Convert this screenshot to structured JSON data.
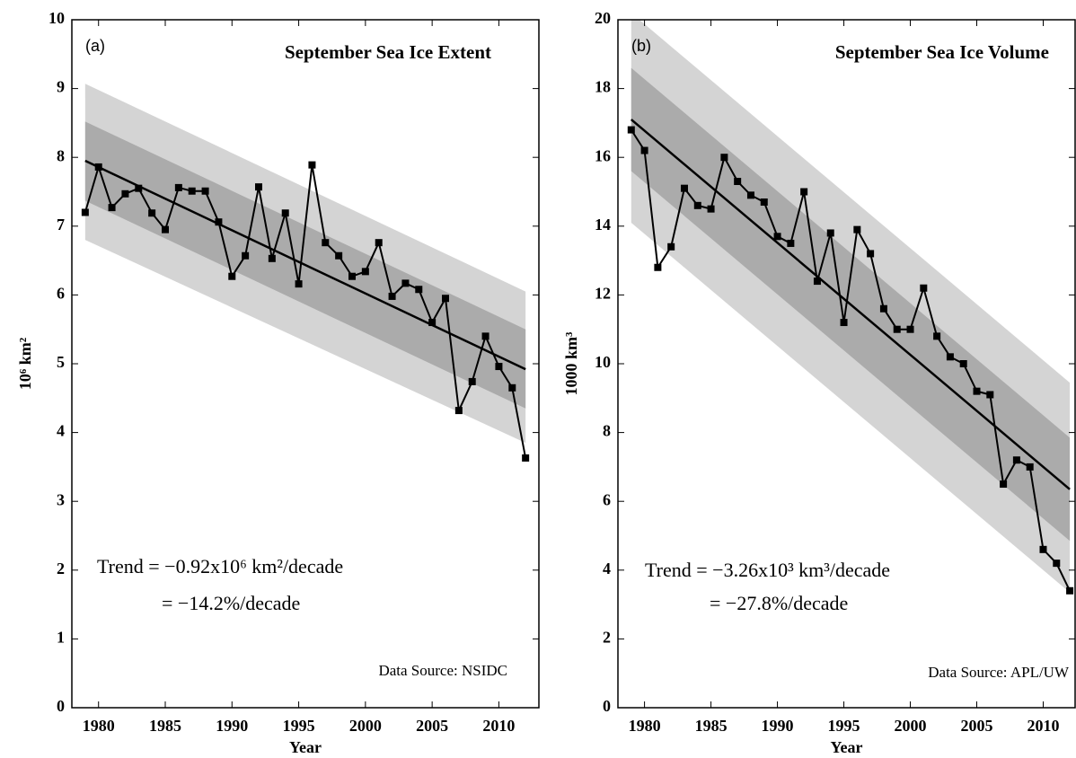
{
  "chart_data": [
    {
      "type": "line",
      "panel_label": "(a)",
      "title": "September Sea Ice Extent",
      "x_label": "Year",
      "y_label": "10⁶ km²",
      "x": [
        1979,
        1980,
        1981,
        1982,
        1983,
        1984,
        1985,
        1986,
        1987,
        1988,
        1989,
        1990,
        1991,
        1992,
        1993,
        1994,
        1995,
        1996,
        1997,
        1998,
        1999,
        2000,
        2001,
        2002,
        2003,
        2004,
        2005,
        2006,
        2007,
        2008,
        2009,
        2010,
        2011,
        2012
      ],
      "values": [
        7.2,
        7.86,
        7.27,
        7.47,
        7.55,
        7.19,
        6.95,
        7.56,
        7.51,
        7.51,
        7.06,
        6.27,
        6.57,
        7.57,
        6.53,
        7.19,
        6.16,
        7.89,
        6.76,
        6.57,
        6.27,
        6.34,
        6.76,
        5.98,
        6.17,
        6.08,
        5.6,
        5.95,
        4.32,
        4.74,
        5.4,
        4.96,
        4.65,
        3.63
      ],
      "color": "#000000",
      "trend": {
        "x": [
          1979,
          2012
        ],
        "values": [
          7.95,
          4.92
        ]
      },
      "bands": [
        {
          "upper": [
            9.07,
            6.05
          ],
          "lower": [
            6.8,
            3.85
          ],
          "color": "#d4d4d4"
        },
        {
          "upper": [
            8.52,
            5.5
          ],
          "lower": [
            7.37,
            4.35
          ],
          "color": "#ababab"
        }
      ],
      "annotations": [
        "Trend = −0.92x10⁶ km²/decade",
        "= −14.2%/decade"
      ],
      "source": "Data Source: NSIDC",
      "xlim": [
        1978,
        2013
      ],
      "ylim": [
        0,
        10
      ],
      "xticks": [
        1980,
        1985,
        1990,
        1995,
        2000,
        2005,
        2010
      ],
      "yticks": [
        0,
        1,
        2,
        3,
        4,
        5,
        6,
        7,
        8,
        9,
        10
      ]
    },
    {
      "type": "line",
      "panel_label": "(b)",
      "title": "September Sea Ice Volume",
      "x_label": "Year",
      "y_label": "1000 km³",
      "x": [
        1979,
        1980,
        1981,
        1982,
        1983,
        1984,
        1985,
        1986,
        1987,
        1988,
        1989,
        1990,
        1991,
        1992,
        1993,
        1994,
        1995,
        1996,
        1997,
        1998,
        1999,
        2000,
        2001,
        2002,
        2003,
        2004,
        2005,
        2006,
        2007,
        2008,
        2009,
        2010,
        2011,
        2012
      ],
      "values": [
        16.8,
        16.2,
        12.8,
        13.4,
        15.1,
        14.6,
        14.5,
        16.0,
        15.3,
        14.9,
        14.7,
        13.7,
        13.5,
        15.0,
        12.4,
        13.8,
        11.2,
        13.9,
        13.2,
        11.6,
        11.0,
        11.0,
        12.2,
        10.8,
        10.2,
        10.0,
        9.2,
        9.1,
        6.5,
        7.2,
        7.0,
        4.6,
        4.2,
        3.4
      ],
      "color": "#000000",
      "trend": {
        "x": [
          1979,
          2012
        ],
        "values": [
          17.1,
          6.35
        ]
      },
      "bands": [
        {
          "upper": [
            20.2,
            9.45
          ],
          "lower": [
            14.1,
            3.35
          ],
          "color": "#d4d4d4"
        },
        {
          "upper": [
            18.6,
            7.85
          ],
          "lower": [
            15.6,
            4.85
          ],
          "color": "#ababab"
        }
      ],
      "annotations": [
        "Trend = −3.26x10³ km³/decade",
        "= −27.8%/decade"
      ],
      "source": "Data Source: APL/UW",
      "xlim": [
        1978,
        2012.4
      ],
      "ylim": [
        0,
        20
      ],
      "xticks": [
        1980,
        1985,
        1990,
        1995,
        2000,
        2005,
        2010
      ],
      "yticks": [
        0,
        2,
        4,
        6,
        8,
        10,
        12,
        14,
        16,
        18,
        20
      ]
    }
  ]
}
